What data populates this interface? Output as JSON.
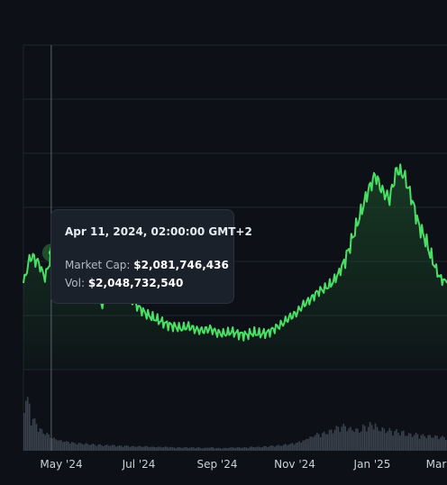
{
  "chart_data": {
    "type": "area",
    "title": "",
    "xlabel": "",
    "ylabel": "",
    "x_tick_labels": [
      "May '24",
      "Jul '24",
      "Sep '24",
      "Nov '24",
      "Jan '25",
      "Mar"
    ],
    "grid": true,
    "colors": {
      "line": "#4ade64",
      "fill": "#1f5a2e",
      "volume": "#3a424d",
      "background": "#0d1117",
      "grid": "#1f252d"
    },
    "series": [
      {
        "values": [
          1.8,
          2.05,
          2.0,
          1.85,
          2.08,
          1.95,
          1.72,
          1.83,
          1.78,
          1.68,
          1.72,
          1.6,
          1.7,
          1.82,
          1.75,
          1.65,
          1.58,
          1.52,
          1.48,
          1.45,
          1.42,
          1.4,
          1.38,
          1.4,
          1.37,
          1.36,
          1.38,
          1.34,
          1.33,
          1.35,
          1.33,
          1.32,
          1.34,
          1.33,
          1.34,
          1.38,
          1.42,
          1.48,
          1.52,
          1.6,
          1.65,
          1.72,
          1.75,
          1.8,
          1.9,
          2.05,
          2.25,
          2.45,
          2.65,
          2.8,
          2.65,
          2.58,
          2.85,
          2.8,
          2.6,
          2.35,
          2.2,
          2.0,
          1.85,
          1.8
        ]
      }
    ],
    "volume": {
      "values": [
        0.9,
        0.55,
        0.38,
        0.3,
        0.22,
        0.18,
        0.16,
        0.14,
        0.13,
        0.12,
        0.11,
        0.1,
        0.1,
        0.09,
        0.09,
        0.08,
        0.08,
        0.08,
        0.07,
        0.07,
        0.07,
        0.06,
        0.06,
        0.06,
        0.06,
        0.05,
        0.06,
        0.05,
        0.05,
        0.06,
        0.06,
        0.06,
        0.07,
        0.07,
        0.08,
        0.09,
        0.1,
        0.12,
        0.14,
        0.18,
        0.24,
        0.3,
        0.32,
        0.36,
        0.42,
        0.45,
        0.4,
        0.38,
        0.44,
        0.48,
        0.4,
        0.38,
        0.36,
        0.34,
        0.3,
        0.3,
        0.28,
        0.27,
        0.26,
        0.25
      ]
    },
    "highlight": {
      "index": 4,
      "value": 2.08
    }
  },
  "tooltip": {
    "date": "Apr 11, 2024, 02:00:00 GMT+2",
    "market_cap_label": "Market Cap:",
    "market_cap_value": "$2,081,746,436",
    "volume_label": "Vol:",
    "volume_value": "$2,048,732,540"
  }
}
